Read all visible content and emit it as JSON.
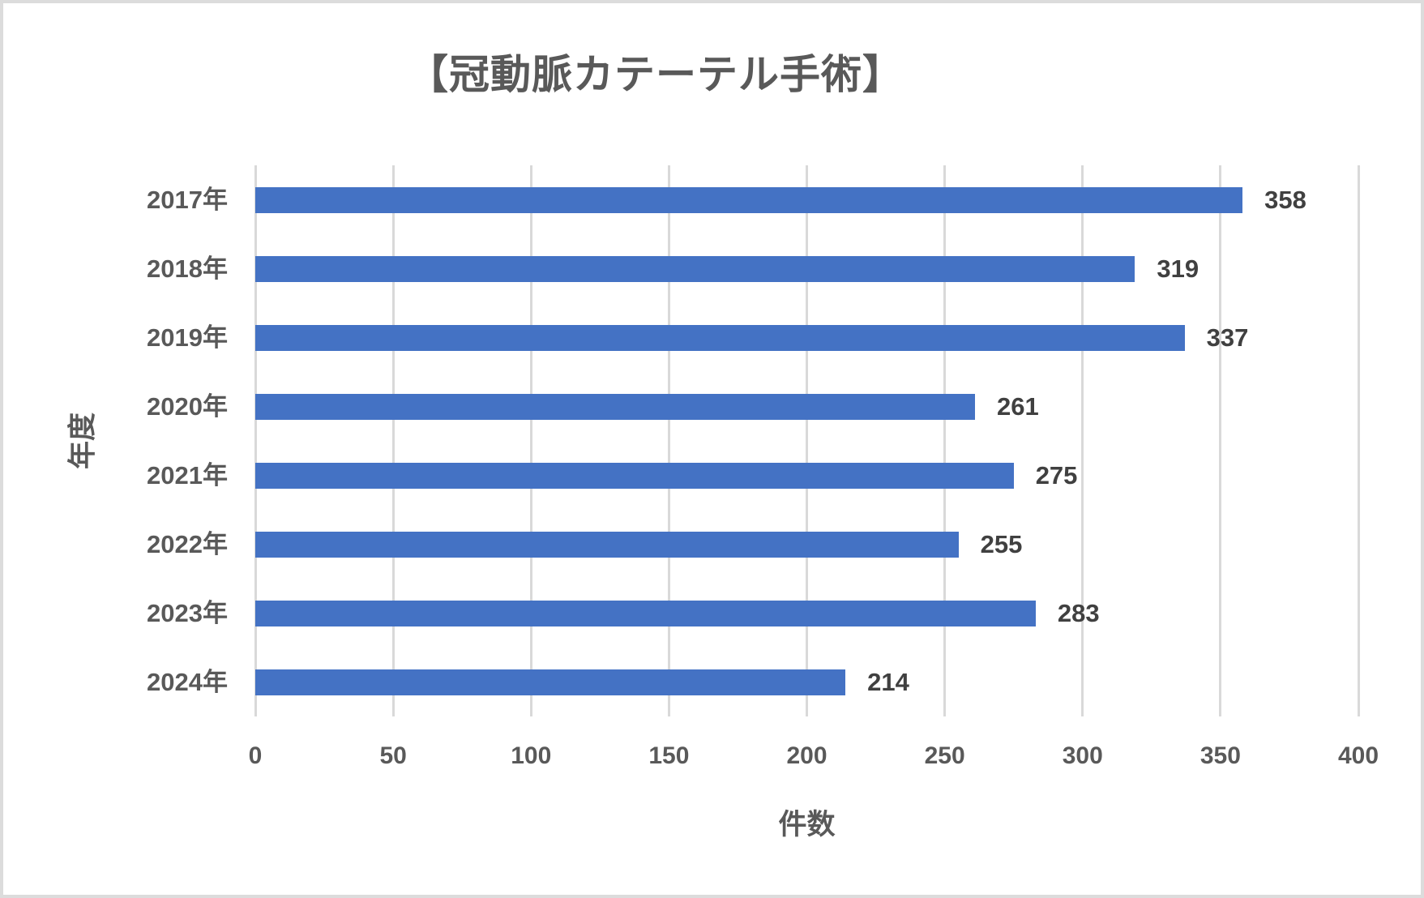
{
  "chart_data": {
    "type": "bar",
    "orientation": "horizontal",
    "title": "【冠動脈カテーテル手術】",
    "categories": [
      "2017年",
      "2018年",
      "2019年",
      "2020年",
      "2021年",
      "2022年",
      "2023年",
      "2024年"
    ],
    "values": [
      358,
      319,
      337,
      261,
      275,
      255,
      283,
      214
    ],
    "xlabel": "件数",
    "ylabel": "年度",
    "xlim": [
      0,
      400
    ],
    "xticks": [
      0,
      50,
      100,
      150,
      200,
      250,
      300,
      350,
      400
    ],
    "grid": true,
    "legend": "none",
    "data_labels": true,
    "colors": {
      "bar": "#4472C4",
      "value_label": "#404040",
      "axis_text": "#595959",
      "gridline": "#D9D9D9",
      "border": "#DCDCDC"
    }
  }
}
